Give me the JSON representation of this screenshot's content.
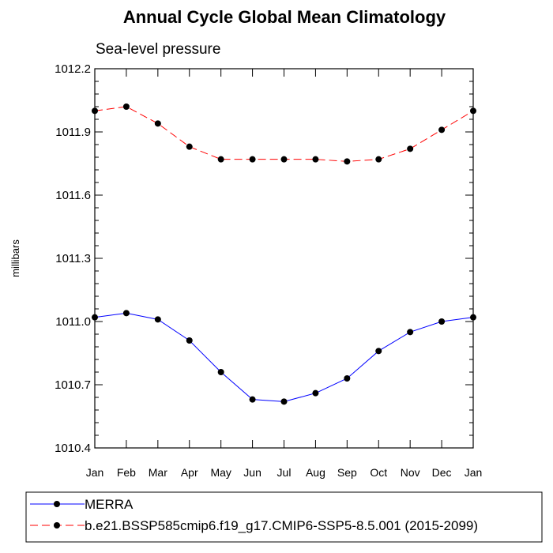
{
  "chart_data": {
    "type": "line",
    "title": "Annual Cycle Global Mean Climatology",
    "subtitle": "Sea-level pressure",
    "xlabel": "",
    "ylabel": "millibars",
    "categories": [
      "Jan",
      "Feb",
      "Mar",
      "Apr",
      "May",
      "Jun",
      "Jul",
      "Aug",
      "Sep",
      "Oct",
      "Nov",
      "Dec",
      "Jan"
    ],
    "ylim": [
      1010.4,
      1012.2
    ],
    "yticks": [
      "1010.4",
      "1010.7",
      "1011.0",
      "1011.3",
      "1011.6",
      "1011.9",
      "1012.2"
    ],
    "grid": false,
    "legend_position": "bottom",
    "series": [
      {
        "name": "MERRA",
        "color": "#0000ff",
        "style": "solid",
        "marker": "filled-circle",
        "values": [
          1011.02,
          1011.04,
          1011.01,
          1010.91,
          1010.76,
          1010.63,
          1010.62,
          1010.66,
          1010.73,
          1010.86,
          1010.95,
          1011.0,
          1011.02
        ]
      },
      {
        "name": "b.e21.BSSP585cmip6.f19_g17.CMIP6-SSP5-8.5.001 (2015-2099)",
        "color": "#ff0000",
        "style": "dashed",
        "marker": "filled-circle",
        "values": [
          1012.0,
          1012.02,
          1011.94,
          1011.83,
          1011.77,
          1011.77,
          1011.77,
          1011.77,
          1011.76,
          1011.77,
          1011.82,
          1011.91,
          1012.0
        ]
      }
    ]
  }
}
